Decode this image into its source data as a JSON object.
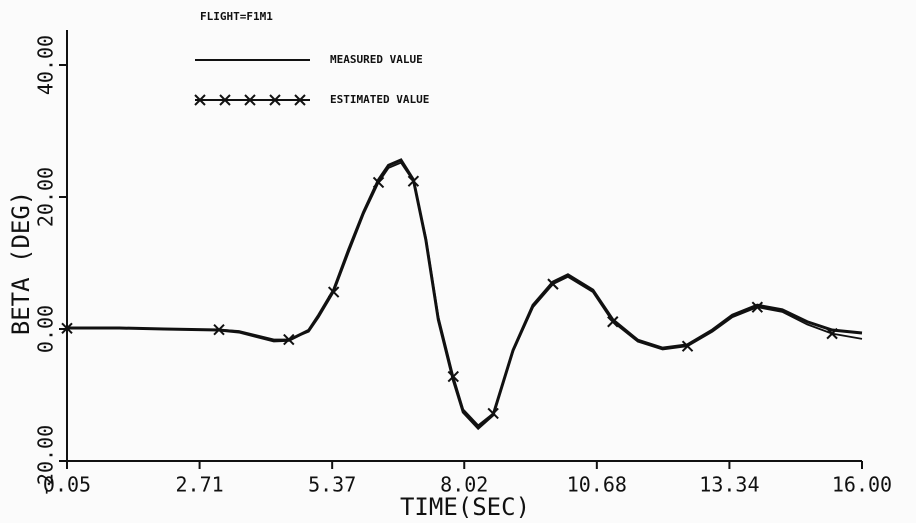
{
  "chart_data": {
    "type": "line",
    "title": "FLIGHT=F1M1",
    "xlabel": "TIME(SEC)",
    "ylabel": "BETA (DEG)",
    "x": [
      0.05,
      1.1,
      2.0,
      3.1,
      3.5,
      4.2,
      4.5,
      4.9,
      5.1,
      5.4,
      5.7,
      6.0,
      6.3,
      6.5,
      6.75,
      7.0,
      7.25,
      7.5,
      7.8,
      8.0,
      8.3,
      8.6,
      9.0,
      9.4,
      9.8,
      10.1,
      10.6,
      11.0,
      11.5,
      12.0,
      12.5,
      13.0,
      13.4,
      13.9,
      14.4,
      14.9,
      15.4,
      16.0
    ],
    "series": [
      {
        "name": "MEASURED VALUE",
        "color": "#111111",
        "marker": "none",
        "values": [
          0.15,
          0.15,
          0,
          -0.15,
          -0.45,
          -1.8,
          -1.7,
          -0.2,
          2.1,
          5.9,
          12,
          17.7,
          22.6,
          24.8,
          25.6,
          22.6,
          13.5,
          1.4,
          -7.7,
          -12.6,
          -15,
          -13,
          -3.2,
          3.6,
          7.1,
          8.2,
          5.9,
          1.4,
          -1.7,
          -2.9,
          -2.4,
          -0.15,
          2.1,
          3.6,
          2.9,
          1.1,
          -0.15,
          -0.6
        ]
      },
      {
        "name": "ESTIMATED VALUE",
        "color": "#111111",
        "marker": "x",
        "values": [
          0.1,
          0.1,
          0,
          -0.1,
          -0.3,
          -1.6,
          -1.6,
          -0.4,
          1.8,
          5.6,
          11.6,
          17.4,
          22.2,
          24.4,
          25.2,
          22.4,
          13.9,
          1.9,
          -7.2,
          -12.2,
          -14.6,
          -12.8,
          -3.4,
          3.3,
          6.8,
          7.9,
          5.6,
          1.1,
          -1.9,
          -3.1,
          -2.6,
          -0.4,
          1.8,
          3.3,
          2.6,
          0.7,
          -0.7,
          -1.5
        ]
      }
    ],
    "xlim": [
      0.05,
      16.0
    ],
    "xticks": [
      0.05,
      2.71,
      5.37,
      8.02,
      10.68,
      13.34,
      {
        "value": 16.0,
        "label": "16.00"
      }
    ],
    "ylim": [
      -20,
      40
    ],
    "yticks": [
      {
        "value": -20,
        "label": "-20.00"
      },
      {
        "value": 0,
        "label": "0.00"
      },
      {
        "value": 20,
        "label": "20.00"
      },
      {
        "value": 40,
        "label": "40.00"
      }
    ],
    "grid": false
  }
}
